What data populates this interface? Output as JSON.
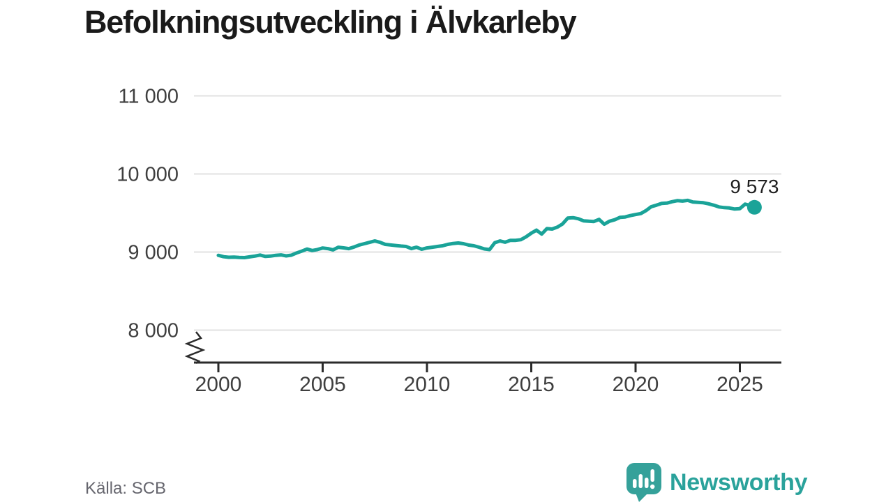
{
  "page": {
    "background": "#ffffff"
  },
  "chart_data": {
    "type": "line",
    "title": "Befolkningsutveckling i Älvkarleby",
    "xlabel": "",
    "ylabel": "",
    "source": "Källa: SCB",
    "grid": "horizontal",
    "legend": "none",
    "y_axis_break": true,
    "ylim": [
      8000,
      11000
    ],
    "xlim": [
      1998.8,
      2027
    ],
    "line_color": "#1aa398",
    "axis_color": "#2b2b2b",
    "grid_color": "#e2e2e2",
    "tick_text_color": "#3f3f3f",
    "y_ticks": [
      {
        "value": 11000,
        "label": "11 000"
      },
      {
        "value": 10000,
        "label": "10 000"
      },
      {
        "value": 9000,
        "label": "9 000"
      },
      {
        "value": 8000,
        "label": "8 000"
      }
    ],
    "x_ticks": [
      {
        "value": 2000,
        "label": "2000"
      },
      {
        "value": 2005,
        "label": "2005"
      },
      {
        "value": 2010,
        "label": "2010"
      },
      {
        "value": 2015,
        "label": "2015"
      },
      {
        "value": 2020,
        "label": "2020"
      },
      {
        "value": 2025,
        "label": "2025"
      }
    ],
    "end_point": {
      "x": 2025.7,
      "value": 9573,
      "label": "9 573"
    },
    "series": [
      {
        "points": [
          [
            2000.0,
            8958
          ],
          [
            2000.25,
            8940
          ],
          [
            2000.5,
            8933
          ],
          [
            2000.75,
            8936
          ],
          [
            2001.0,
            8931
          ],
          [
            2001.25,
            8929
          ],
          [
            2001.5,
            8938
          ],
          [
            2001.75,
            8948
          ],
          [
            2002.0,
            8962
          ],
          [
            2002.25,
            8944
          ],
          [
            2002.5,
            8948
          ],
          [
            2002.75,
            8958
          ],
          [
            2003.0,
            8963
          ],
          [
            2003.25,
            8951
          ],
          [
            2003.5,
            8960
          ],
          [
            2003.75,
            8988
          ],
          [
            2004.0,
            9012
          ],
          [
            2004.25,
            9038
          ],
          [
            2004.5,
            9020
          ],
          [
            2004.75,
            9032
          ],
          [
            2005.0,
            9052
          ],
          [
            2005.25,
            9044
          ],
          [
            2005.5,
            9028
          ],
          [
            2005.75,
            9062
          ],
          [
            2006.0,
            9054
          ],
          [
            2006.25,
            9044
          ],
          [
            2006.5,
            9064
          ],
          [
            2006.75,
            9090
          ],
          [
            2007.0,
            9107
          ],
          [
            2007.25,
            9124
          ],
          [
            2007.5,
            9142
          ],
          [
            2007.75,
            9124
          ],
          [
            2008.0,
            9098
          ],
          [
            2008.25,
            9091
          ],
          [
            2008.5,
            9084
          ],
          [
            2008.75,
            9077
          ],
          [
            2009.0,
            9071
          ],
          [
            2009.25,
            9044
          ],
          [
            2009.5,
            9062
          ],
          [
            2009.75,
            9036
          ],
          [
            2010.0,
            9053
          ],
          [
            2010.25,
            9062
          ],
          [
            2010.5,
            9071
          ],
          [
            2010.75,
            9080
          ],
          [
            2011.0,
            9098
          ],
          [
            2011.25,
            9110
          ],
          [
            2011.5,
            9116
          ],
          [
            2011.75,
            9107
          ],
          [
            2012.0,
            9089
          ],
          [
            2012.25,
            9080
          ],
          [
            2012.5,
            9062
          ],
          [
            2012.75,
            9040
          ],
          [
            2013.0,
            9031
          ],
          [
            2013.25,
            9120
          ],
          [
            2013.5,
            9142
          ],
          [
            2013.75,
            9126
          ],
          [
            2014.0,
            9150
          ],
          [
            2014.25,
            9150
          ],
          [
            2014.5,
            9158
          ],
          [
            2014.75,
            9195
          ],
          [
            2015.0,
            9242
          ],
          [
            2015.25,
            9280
          ],
          [
            2015.5,
            9230
          ],
          [
            2015.75,
            9300
          ],
          [
            2016.0,
            9295
          ],
          [
            2016.25,
            9320
          ],
          [
            2016.5,
            9360
          ],
          [
            2016.75,
            9435
          ],
          [
            2017.0,
            9440
          ],
          [
            2017.25,
            9427
          ],
          [
            2017.5,
            9400
          ],
          [
            2017.75,
            9395
          ],
          [
            2018.0,
            9391
          ],
          [
            2018.25,
            9418
          ],
          [
            2018.5,
            9356
          ],
          [
            2018.75,
            9395
          ],
          [
            2019.0,
            9413
          ],
          [
            2019.25,
            9444
          ],
          [
            2019.5,
            9449
          ],
          [
            2019.75,
            9467
          ],
          [
            2020.0,
            9480
          ],
          [
            2020.25,
            9493
          ],
          [
            2020.5,
            9530
          ],
          [
            2020.75,
            9580
          ],
          [
            2021.0,
            9600
          ],
          [
            2021.25,
            9622
          ],
          [
            2021.5,
            9627
          ],
          [
            2021.75,
            9645
          ],
          [
            2022.0,
            9658
          ],
          [
            2022.25,
            9653
          ],
          [
            2022.5,
            9662
          ],
          [
            2022.75,
            9640
          ],
          [
            2023.0,
            9636
          ],
          [
            2023.25,
            9631
          ],
          [
            2023.5,
            9618
          ],
          [
            2023.75,
            9600
          ],
          [
            2024.0,
            9578
          ],
          [
            2024.25,
            9569
          ],
          [
            2024.5,
            9564
          ],
          [
            2024.75,
            9551
          ],
          [
            2025.0,
            9556
          ],
          [
            2025.25,
            9613
          ],
          [
            2025.5,
            9596
          ],
          [
            2025.7,
            9573
          ]
        ]
      }
    ]
  },
  "footer": {
    "source": "Källa: SCB",
    "brand": "Newsworthy"
  }
}
